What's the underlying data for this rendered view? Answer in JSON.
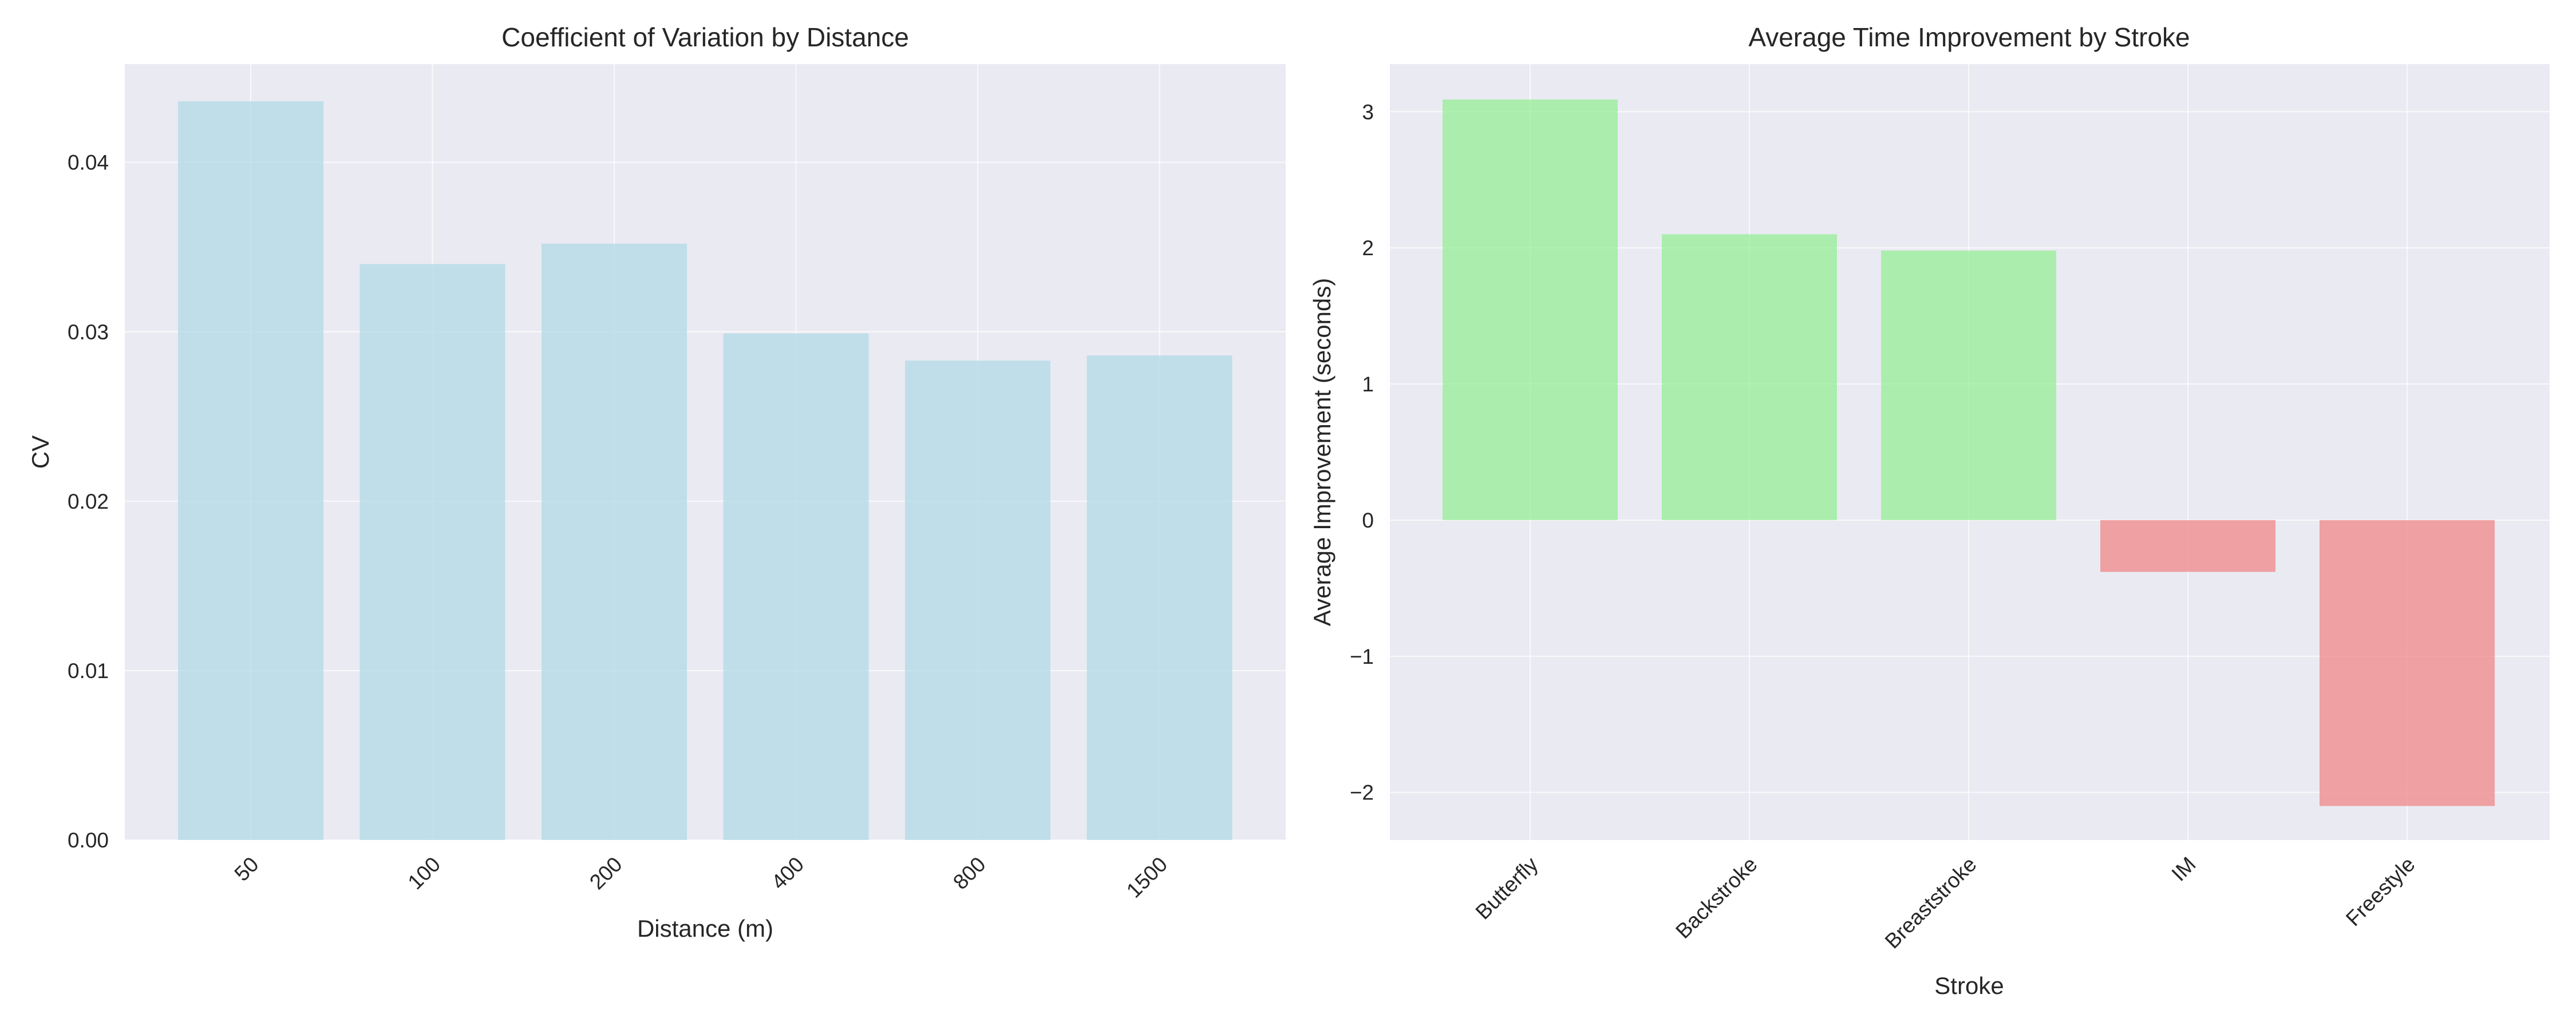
{
  "chart_data": [
    {
      "type": "bar",
      "title": "Coefficient of Variation by Distance",
      "xlabel": "Distance (m)",
      "ylabel": "CV",
      "categories": [
        "50",
        "100",
        "200",
        "400",
        "800",
        "1500"
      ],
      "values": [
        0.0436,
        0.034,
        0.0352,
        0.0299,
        0.0283,
        0.0286
      ],
      "ylim": [
        0,
        0.0458
      ],
      "yticks": [
        0.0,
        0.01,
        0.02,
        0.03,
        0.04
      ],
      "ytick_labels": [
        "0.00",
        "0.01",
        "0.02",
        "0.03",
        "0.04"
      ],
      "bar_color": "#add8e6",
      "grid": true,
      "xtick_rotation": "45°"
    },
    {
      "type": "bar",
      "title": "Average Time Improvement by Stroke",
      "xlabel": "Stroke",
      "ylabel": "Average Improvement (seconds)",
      "categories": [
        "Butterfly",
        "Backstroke",
        "Breaststroke",
        "IM",
        "Freestyle"
      ],
      "values": [
        3.09,
        2.1,
        1.98,
        -0.38,
        -2.1
      ],
      "ylim": [
        -2.35,
        3.35
      ],
      "yticks": [
        -2,
        -1,
        0,
        1,
        2,
        3
      ],
      "ytick_labels": [
        "−2",
        "−1",
        "0",
        "1",
        "2",
        "3"
      ],
      "positive_color": "#90ee90",
      "negative_color": "#f08080",
      "grid": true,
      "xtick_rotation": "45°"
    }
  ]
}
